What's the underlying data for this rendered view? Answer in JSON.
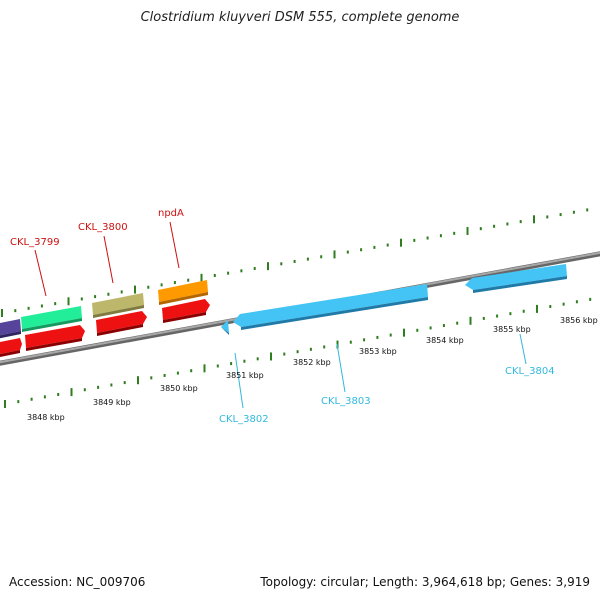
{
  "title": "Clostridium kluyveri DSM 555, complete genome",
  "footer": {
    "accession": "Accession: NC_009706",
    "summary": "Topology: circular; Length: 3,964,618 bp; Genes: 3,919"
  },
  "ticks": [
    "3848 kbp",
    "3849 kbp",
    "3850 kbp",
    "3851 kbp",
    "3852 kbp",
    "3853 kbp",
    "3854 kbp",
    "3855 kbp",
    "3856 kbp"
  ],
  "gene_labels": {
    "ckl3799": "CKL_3799",
    "ckl3800": "CKL_3800",
    "npda": "npdA",
    "ckl3802": "CKL_3802",
    "ckl3803": "CKL_3803",
    "ckl3804": "CKL_3804"
  },
  "colors": {
    "forward_label": "#cc1111",
    "reverse_label": "#33b8dd",
    "tick_green": "#2e7d1e",
    "backbone": "#8a8a8a",
    "gene_red": "#ee1111",
    "gene_blue": "#44c4f4",
    "gene_green": "#22ee99",
    "gene_khaki": "#bdb76b",
    "gene_orange": "#ff9900",
    "gene_purple": "#55449a"
  }
}
